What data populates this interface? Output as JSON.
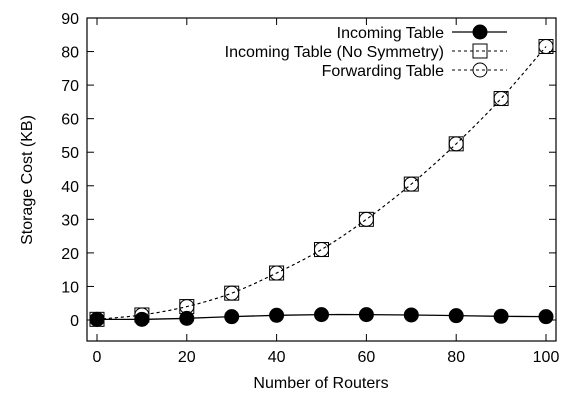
{
  "chart_data": {
    "type": "line",
    "title": "",
    "xlabel": "Number of Routers",
    "ylabel": "Storage Cost (KB)",
    "xlim": [
      0,
      100
    ],
    "ylim": [
      0,
      90
    ],
    "xticks": [
      0,
      20,
      40,
      60,
      80,
      100
    ],
    "yticks": [
      0,
      10,
      20,
      30,
      40,
      50,
      60,
      70,
      80,
      90
    ],
    "grid": false,
    "legend_position": "top-right",
    "x": [
      0,
      10,
      20,
      30,
      40,
      50,
      60,
      70,
      80,
      90,
      100
    ],
    "series": [
      {
        "name": "Incoming Table",
        "line": "solid",
        "marker": "filled-circle",
        "values": [
          0.2,
          0.2,
          0.5,
          1.0,
          1.4,
          1.6,
          1.6,
          1.5,
          1.3,
          1.1,
          1.0
        ]
      },
      {
        "name": "Incoming Table (No Symmetry)",
        "line": "dashed",
        "marker": "open-square",
        "values": [
          0.2,
          1.5,
          4.0,
          8.0,
          14.0,
          21.0,
          30.0,
          40.5,
          52.5,
          66.0,
          81.5
        ]
      },
      {
        "name": "Forwarding Table",
        "line": "dashed",
        "marker": "open-circle",
        "values": [
          0.2,
          1.5,
          4.0,
          8.0,
          14.0,
          21.0,
          30.0,
          40.5,
          52.5,
          66.0,
          81.5
        ]
      }
    ]
  }
}
